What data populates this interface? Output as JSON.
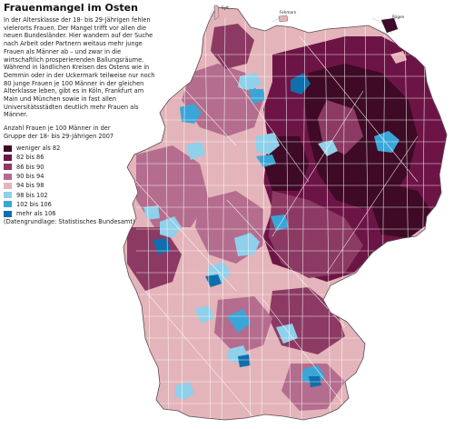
{
  "title": "Frauenmangel im Osten",
  "intro": "In der Altersklasse der 18- bis 29-Jährigen fehlen vielerorts Frauen. Der Mangel trifft vor allen die neuen Bundesländer. Hier wandern auf der Suche nach Arbeit oder Partnern weitaus mehr junge Frauen als Männer ab – und zwar in die wirtschaftlich prosperierenden Ballungsräume. Während in ländlichen Kreisen des Ostens wie in Demmin oder in der Uckermark teilweise nur noch 80 junge Frauen je 100 Männer in der gleichen Alterklasse leben, gibt es in Köln, Frankfurt am Main und München sowie in fast allen Universitätsstädten deutlich mehr Frauen als Männer.",
  "legend": {
    "caption": "Anzahl Frauen je 100 Männer in der Gruppe der 18- bis 29-Jährigen 2007",
    "classes": [
      {
        "label": "weniger als 82",
        "color": "#3e0a26"
      },
      {
        "label": "82 bis 86",
        "color": "#6d1446"
      },
      {
        "label": "86 bis 90",
        "color": "#8c3a63"
      },
      {
        "label": "90 bis 94",
        "color": "#b46d8e"
      },
      {
        "label": "94 bis 98",
        "color": "#e3b4b9"
      },
      {
        "label": "98 bis 102",
        "color": "#8fd0ea"
      },
      {
        "label": "102 bis 106",
        "color": "#3aa6d7"
      },
      {
        "label": "mehr als 106",
        "color": "#0f6fac"
      }
    ]
  },
  "source": "(Datengrundlage: Statistisches Bundesamt)",
  "places": [
    {
      "label": "Sylt"
    },
    {
      "label": "Fehmarn"
    },
    {
      "label": "Rügen"
    }
  ]
}
